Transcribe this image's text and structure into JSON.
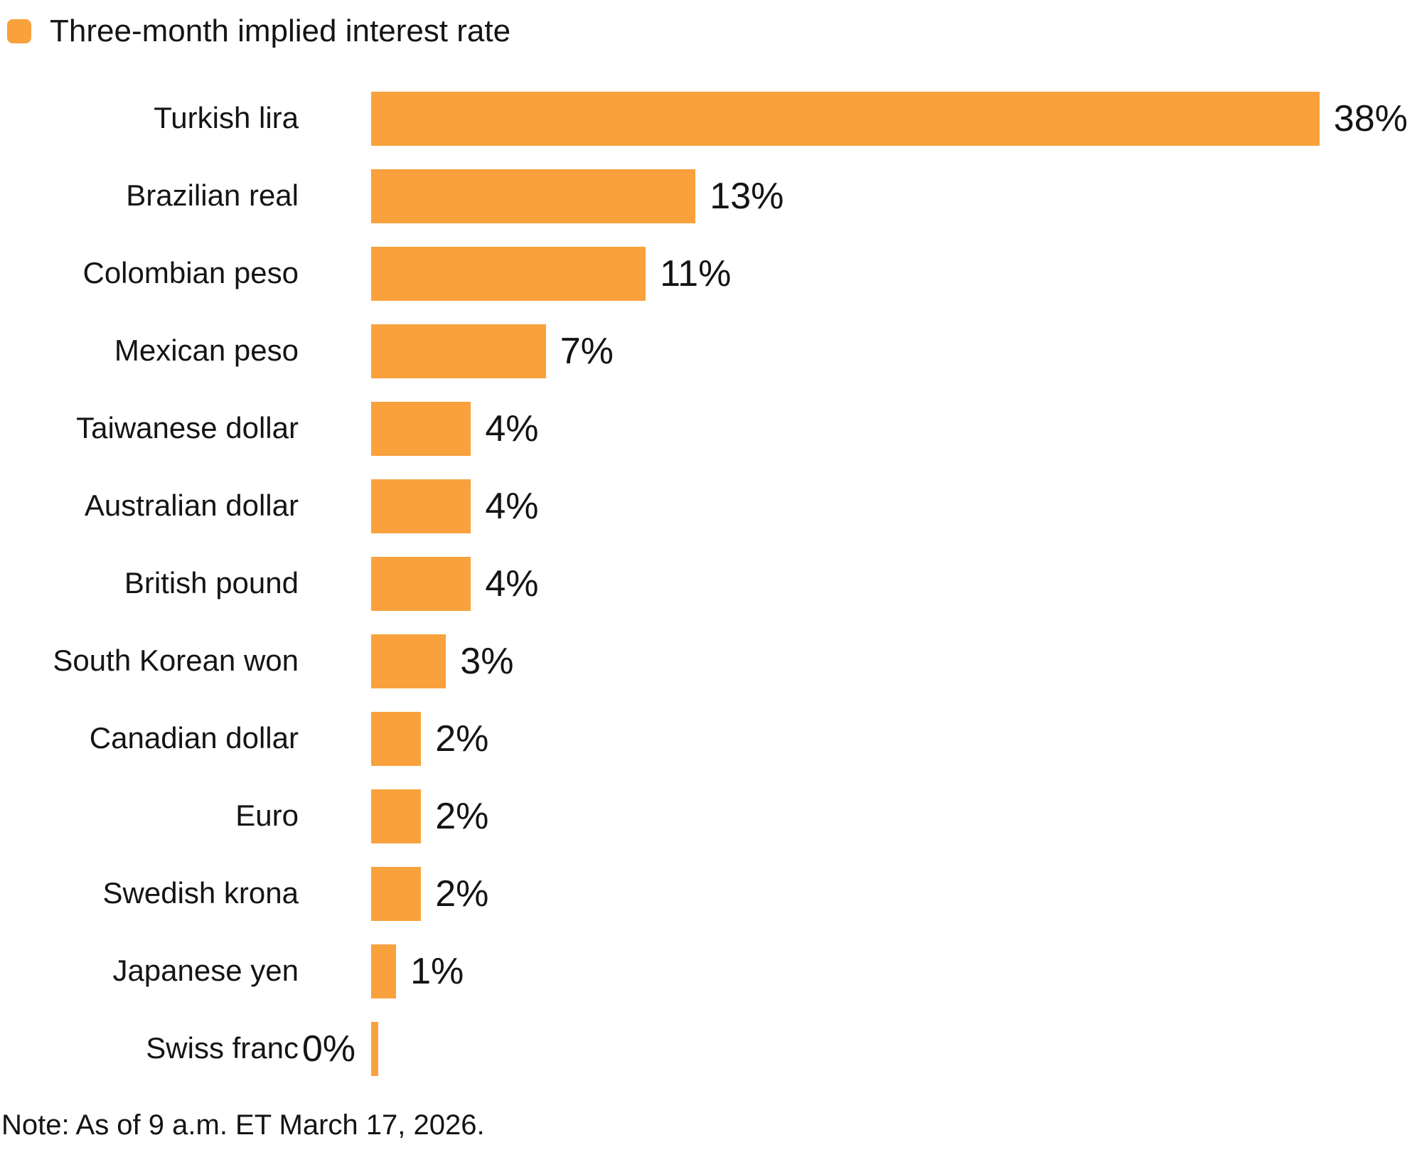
{
  "legend": {
    "label": "Three-month implied interest rate",
    "swatch_color": "#F9A13C"
  },
  "chart_data": {
    "type": "bar",
    "orientation": "horizontal",
    "title": "Three-month implied interest rate",
    "categories": [
      "Turkish lira",
      "Brazilian real",
      "Colombian peso",
      "Mexican peso",
      "Taiwanese dollar",
      "Australian dollar",
      "British pound",
      "South Korean won",
      "Canadian dollar",
      "Euro",
      "Swedish krona",
      "Japanese yen",
      "Swiss franc"
    ],
    "values": [
      38,
      13,
      11,
      7,
      4,
      4,
      4,
      3,
      2,
      2,
      2,
      1,
      0
    ],
    "value_labels": [
      "38%",
      "13%",
      "11%",
      "7%",
      "4%",
      "4%",
      "4%",
      "3%",
      "2%",
      "2%",
      "2%",
      "1%",
      "0%"
    ],
    "value_label_sides": [
      "right",
      "right",
      "right",
      "right",
      "right",
      "right",
      "right",
      "right",
      "right",
      "right",
      "right",
      "right",
      "left"
    ],
    "xlabel": "",
    "ylabel": "",
    "xlim": [
      0,
      38
    ],
    "grid": false,
    "legend_position": "top-left",
    "bar_color": "#F9A13C",
    "text_color": "#141414"
  },
  "note": "Note: As of 9 a.m. ET March 17, 2026."
}
